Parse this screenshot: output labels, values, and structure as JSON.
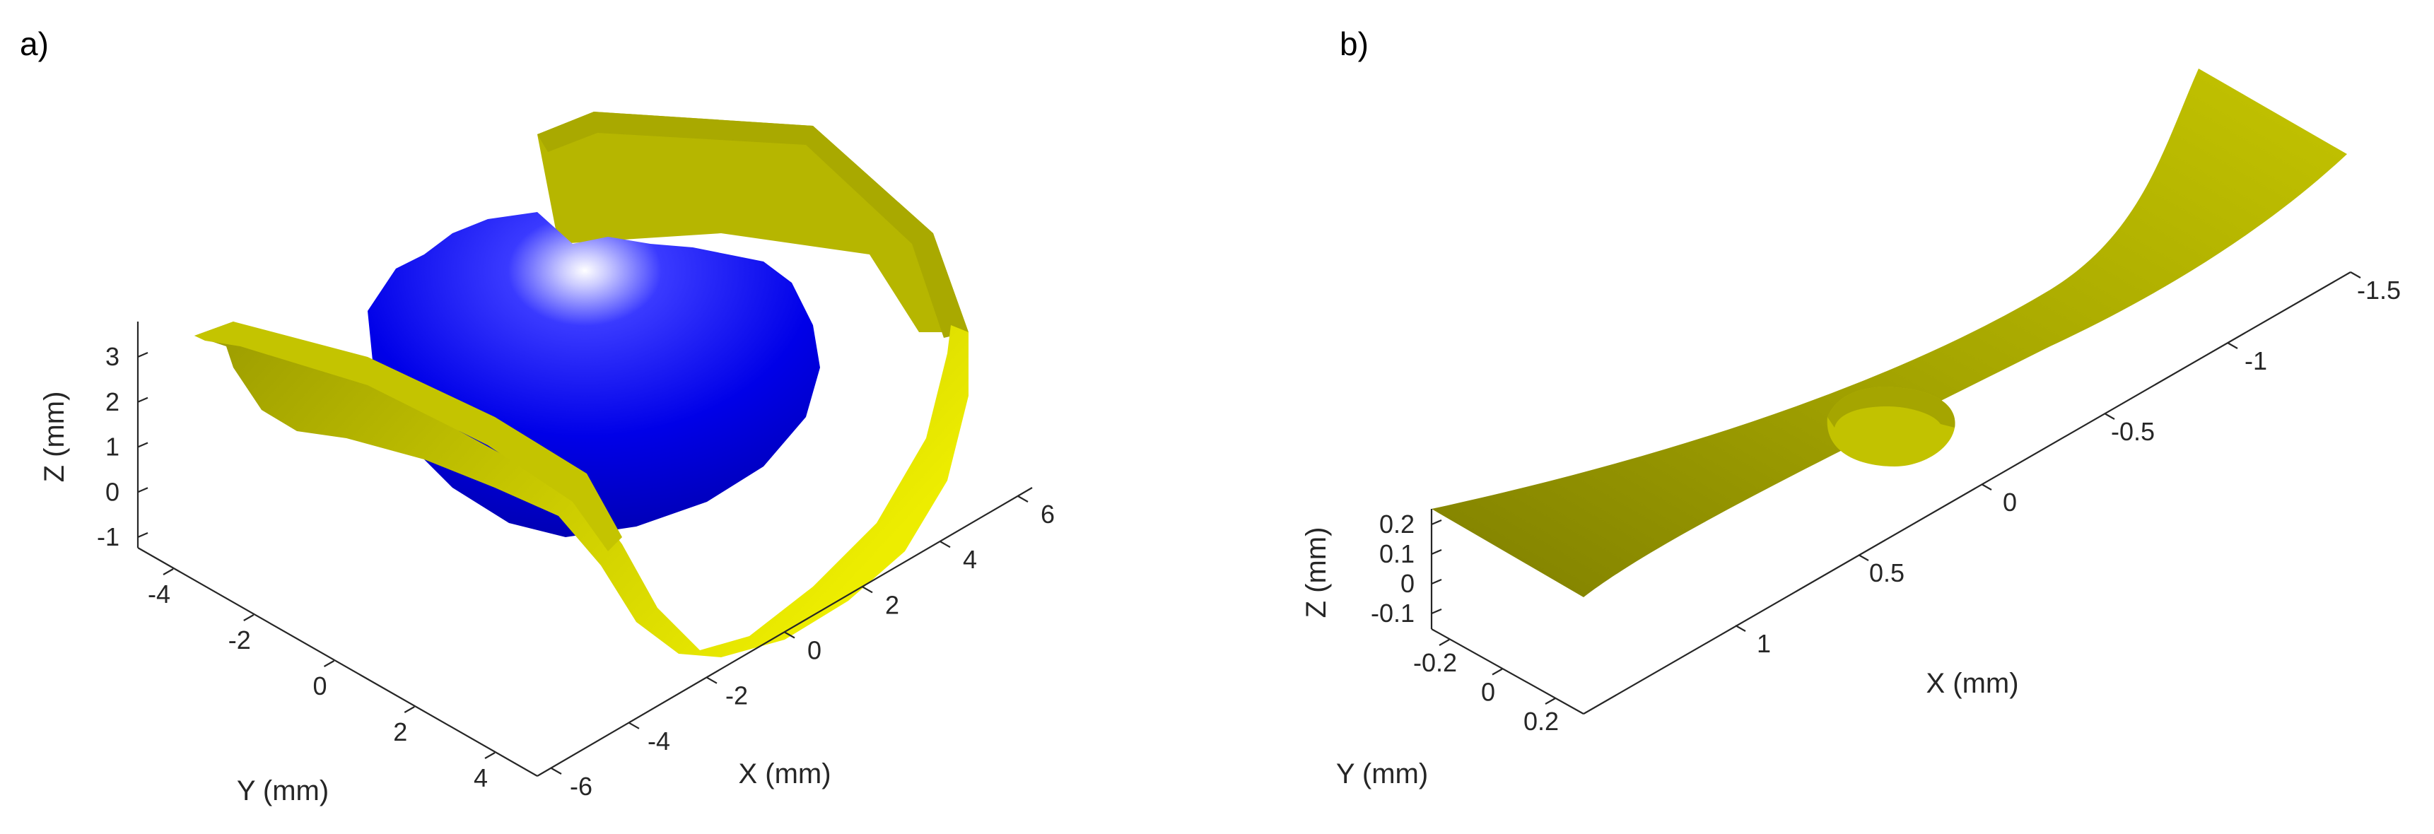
{
  "colors": {
    "surface_yellow": "#e6e600",
    "surface_yellow_dark": "#7f7f00",
    "sphere_blue": "#0000ff",
    "sphere_highlight": "#ffffff",
    "axis": "#262626"
  },
  "chart_data": [
    {
      "panel": "a)",
      "type": "3d-surface",
      "title": "",
      "xlabel": "X (mm)",
      "ylabel": "Y (mm)",
      "zlabel": "Z (mm)",
      "x_ticks": [
        "-6",
        "-4",
        "-2",
        "0",
        "2",
        "4",
        "6"
      ],
      "y_ticks": [
        "-4",
        "-2",
        "0",
        "2",
        "4"
      ],
      "z_ticks": [
        "3",
        "2",
        "1",
        "0",
        "-1"
      ],
      "xlim": [
        -6,
        6
      ],
      "ylim": [
        -5,
        5
      ],
      "zlim": [
        -1,
        3.5
      ],
      "grid": false,
      "series": [
        {
          "name": "",
          "surface": "cylindrical trough",
          "color": "#e6e600"
        },
        {
          "name": "",
          "surface": "sphere",
          "color": "#0000ff"
        }
      ]
    },
    {
      "panel": "b)",
      "type": "3d-surface",
      "title": "",
      "xlabel": "X (mm)",
      "ylabel": "Y (mm)",
      "zlabel": "Z (mm)",
      "x_ticks": [
        "-1.5",
        "-1",
        "-0.5",
        "0",
        "0.5",
        "1"
      ],
      "y_ticks": [
        "-0.2",
        "0",
        "0.2"
      ],
      "z_ticks": [
        "0.2",
        "0.1",
        "0",
        "-0.1"
      ],
      "xlim": [
        -1.5,
        1.3
      ],
      "ylim": [
        -0.3,
        0.3
      ],
      "zlim": [
        -0.15,
        0.25
      ],
      "grid": false,
      "series": [
        {
          "name": "",
          "surface": "curved strip with circular dimple",
          "color": "#e6e600"
        }
      ]
    }
  ]
}
